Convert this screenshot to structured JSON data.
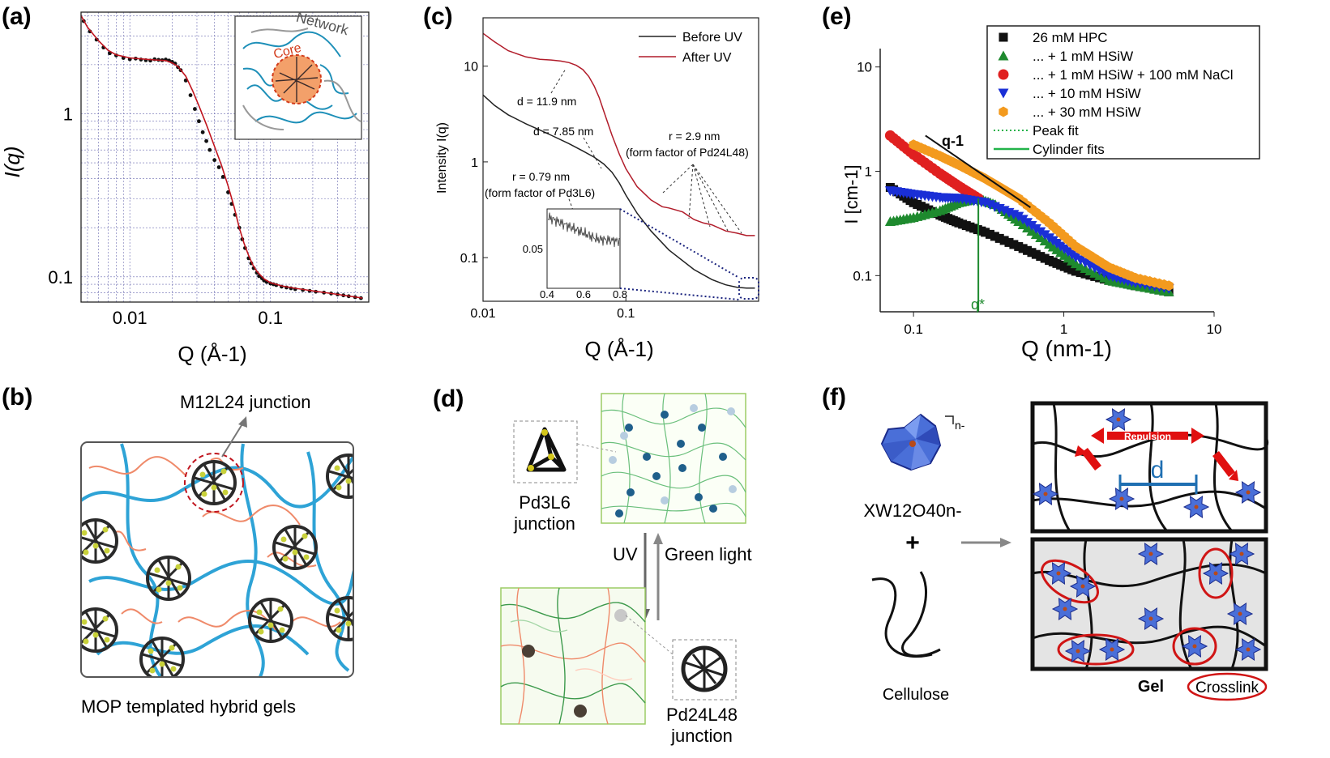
{
  "panels": {
    "a": {
      "letter": "(a)",
      "ylabel": "I(q)",
      "xlabel": "Q (Å-1)",
      "inset_labels": {
        "network": "Network",
        "core": "Core"
      }
    },
    "b": {
      "letter": "(b)",
      "junction_label": "M12L24 junction",
      "caption": "MOP templated hybrid gels"
    },
    "c": {
      "letter": "(c)",
      "legend": {
        "before": "Before UV",
        "after": "After UV"
      },
      "annotations": {
        "d_after": "d = 11.9 nm",
        "d_before": "d = 7.85 nm",
        "r_small": "r = 0.79 nm",
        "r_small_ff": "(form factor of Pd3L6)",
        "r_large": "r = 2.9 nm",
        "r_large_ff": "(form factor of Pd24L48)"
      }
    },
    "d": {
      "letter": "(d)",
      "pd3_label": "Pd3L6",
      "pd3_junction": "junction",
      "uv": "UV",
      "green": "Green light",
      "pd24_label": "Pd24L48",
      "pd24_junction": "junction"
    },
    "e": {
      "letter": "(e)",
      "legend": [
        {
          "label": "26 mM HPC",
          "color": "#111111",
          "marker": "square"
        },
        {
          "label": "... + 1 mM HSiW",
          "color": "#1e8a2e",
          "marker": "triangle-up"
        },
        {
          "label": "... + 1 mM HSiW + 100 mM NaCl",
          "color": "#e02020",
          "marker": "circle"
        },
        {
          "label": "... + 10 mM HSiW",
          "color": "#1a2fd6",
          "marker": "triangle-down"
        },
        {
          "label": "... + 30 mM HSiW",
          "color": "#f39a1e",
          "marker": "hexagon"
        },
        {
          "label": "Peak fit",
          "color": "#22b34a",
          "marker": "dotted-line"
        },
        {
          "label": "Cylinder fits",
          "color": "#22b34a",
          "marker": "solid-line"
        }
      ],
      "power_law": "q-1",
      "qstar": "q*"
    },
    "f": {
      "letter": "(f)",
      "charge": "n-",
      "formula": "XW12O40n-",
      "plus": "+",
      "cellulose": "Cellulose",
      "repulsion": "Repulsion",
      "d": "d",
      "gel": "Gel",
      "crosslink": "Crosslink"
    }
  },
  "chart_data": [
    {
      "panel": "a",
      "type": "scatter",
      "xscale": "log",
      "yscale": "log",
      "xlim": [
        0.0045,
        0.5
      ],
      "ylim": [
        0.07,
        4.2
      ],
      "xticks": [
        {
          "v": 0.01,
          "label": "0.01"
        },
        {
          "v": 0.1,
          "label": "0.1"
        }
      ],
      "yticks": [
        {
          "v": 0.1,
          "label": "0.1"
        },
        {
          "v": 1,
          "label": "1"
        }
      ],
      "grid": true,
      "series": [
        {
          "kind": "points",
          "color": "#111111",
          "x": [
            0.0047,
            0.0052,
            0.0058,
            0.0065,
            0.0072,
            0.008,
            0.009,
            0.01,
            0.011,
            0.012,
            0.013,
            0.014,
            0.015,
            0.016,
            0.017,
            0.018,
            0.019,
            0.02,
            0.021,
            0.022,
            0.023,
            0.025,
            0.027,
            0.029,
            0.031,
            0.033,
            0.035,
            0.037,
            0.04,
            0.043,
            0.046,
            0.05,
            0.053,
            0.056,
            0.06,
            0.063,
            0.066,
            0.07,
            0.073,
            0.076,
            0.08,
            0.083,
            0.087,
            0.09,
            0.094,
            0.1,
            0.105,
            0.11,
            0.12,
            0.13,
            0.14,
            0.15,
            0.17,
            0.19,
            0.21,
            0.24,
            0.27,
            0.3,
            0.33,
            0.36,
            0.4,
            0.44
          ],
          "y": [
            3.7,
            3.2,
            2.85,
            2.55,
            2.35,
            2.28,
            2.2,
            2.16,
            2.18,
            2.15,
            2.13,
            2.12,
            2.16,
            2.14,
            2.13,
            2.15,
            2.12,
            2.08,
            2.03,
            1.93,
            1.85,
            1.6,
            1.3,
            1.07,
            0.9,
            0.77,
            0.68,
            0.6,
            0.52,
            0.47,
            0.41,
            0.33,
            0.28,
            0.24,
            0.2,
            0.17,
            0.15,
            0.13,
            0.121,
            0.113,
            0.106,
            0.101,
            0.098,
            0.095,
            0.093,
            0.091,
            0.09,
            0.089,
            0.087,
            0.086,
            0.085,
            0.084,
            0.083,
            0.082,
            0.081,
            0.08,
            0.079,
            0.078,
            0.077,
            0.076,
            0.075,
            0.074
          ]
        },
        {
          "kind": "line",
          "color": "#c0141e",
          "x": [
            0.0045,
            0.005,
            0.006,
            0.007,
            0.008,
            0.01,
            0.012,
            0.015,
            0.018,
            0.02,
            0.022,
            0.025,
            0.028,
            0.031,
            0.035,
            0.04,
            0.045,
            0.05,
            0.055,
            0.06,
            0.065,
            0.07,
            0.075,
            0.08,
            0.09,
            0.1,
            0.12,
            0.15,
            0.2,
            0.3,
            0.45
          ],
          "y": [
            4.0,
            3.4,
            2.8,
            2.45,
            2.3,
            2.2,
            2.17,
            2.14,
            2.12,
            2.05,
            1.95,
            1.7,
            1.38,
            1.12,
            0.86,
            0.63,
            0.48,
            0.36,
            0.27,
            0.2,
            0.16,
            0.135,
            0.118,
            0.108,
            0.097,
            0.092,
            0.088,
            0.085,
            0.082,
            0.078,
            0.074
          ]
        }
      ]
    },
    {
      "panel": "c",
      "type": "line",
      "xscale": "log",
      "yscale": "log",
      "xlabel": "Q (Å-1)",
      "ylabel": "Intensity I(q)",
      "xlim": [
        0.01,
        0.85
      ],
      "ylim": [
        0.035,
        32
      ],
      "xticks": [
        {
          "v": 0.01,
          "label": "0.01"
        },
        {
          "v": 0.1,
          "label": "0.1"
        }
      ],
      "yticks": [
        {
          "v": 0.1,
          "label": "0.1"
        },
        {
          "v": 1,
          "label": "1"
        },
        {
          "v": 10,
          "label": "10"
        }
      ],
      "series": [
        {
          "name": "Before UV",
          "color": "#222222",
          "x": [
            0.01,
            0.012,
            0.015,
            0.02,
            0.025,
            0.03,
            0.04,
            0.05,
            0.06,
            0.07,
            0.08,
            0.09,
            0.1,
            0.12,
            0.15,
            0.2,
            0.3,
            0.4,
            0.5,
            0.6,
            0.7,
            0.8
          ],
          "y": [
            5.0,
            3.9,
            3.1,
            2.5,
            2.15,
            1.9,
            1.55,
            1.3,
            1.12,
            0.95,
            0.78,
            0.6,
            0.45,
            0.29,
            0.19,
            0.12,
            0.075,
            0.059,
            0.052,
            0.049,
            0.048,
            0.048
          ]
        },
        {
          "name": "After UV",
          "color": "#b11c2a",
          "x": [
            0.01,
            0.012,
            0.015,
            0.02,
            0.025,
            0.03,
            0.035,
            0.04,
            0.045,
            0.05,
            0.055,
            0.06,
            0.065,
            0.07,
            0.08,
            0.09,
            0.1,
            0.12,
            0.15,
            0.18,
            0.2,
            0.25,
            0.3,
            0.35,
            0.4,
            0.5,
            0.6,
            0.7,
            0.8
          ],
          "y": [
            22,
            18,
            14.5,
            12.5,
            11.8,
            11.6,
            11.3,
            10.9,
            10.2,
            9.2,
            7.8,
            6.2,
            4.7,
            3.4,
            1.9,
            1.2,
            0.85,
            0.55,
            0.4,
            0.34,
            0.33,
            0.3,
            0.25,
            0.23,
            0.22,
            0.19,
            0.18,
            0.17,
            0.17
          ]
        }
      ],
      "inset": {
        "xlim": [
          0.4,
          0.8
        ],
        "ylim": [
          0.03,
          0.075
        ],
        "xticks": [
          {
            "v": 0.4,
            "label": "0.4"
          },
          {
            "v": 0.6,
            "label": "0.6"
          },
          {
            "v": 0.8,
            "label": "0.8"
          }
        ],
        "yticks": [
          {
            "v": 0.05,
            "label": "0.05"
          }
        ]
      }
    },
    {
      "panel": "e",
      "type": "scatter",
      "xscale": "log",
      "yscale": "log",
      "xlabel": "Q (nm-1)",
      "ylabel": "I [cm-1]",
      "xlim": [
        0.06,
        10
      ],
      "ylim": [
        0.045,
        15
      ],
      "xticks": [
        {
          "v": 0.1,
          "label": "0.1"
        },
        {
          "v": 1,
          "label": "1"
        },
        {
          "v": 10,
          "label": "10"
        }
      ],
      "yticks": [
        {
          "v": 0.1,
          "label": "0.1"
        },
        {
          "v": 1,
          "label": "1"
        },
        {
          "v": 10,
          "label": "10"
        }
      ],
      "series": [
        {
          "name": "26 mM HPC",
          "x": [
            0.07,
            0.1,
            0.15,
            0.2,
            0.3,
            0.5,
            0.8,
            1.2,
            2,
            3,
            5
          ],
          "y": [
            0.7,
            0.5,
            0.38,
            0.32,
            0.26,
            0.19,
            0.14,
            0.11,
            0.09,
            0.08,
            0.07
          ]
        },
        {
          "name": "... + 1 mM HSiW",
          "x": [
            0.07,
            0.1,
            0.15,
            0.2,
            0.27,
            0.35,
            0.5,
            0.8,
            1.2,
            2,
            3,
            5
          ],
          "y": [
            0.33,
            0.36,
            0.42,
            0.5,
            0.55,
            0.48,
            0.33,
            0.2,
            0.13,
            0.09,
            0.08,
            0.07
          ]
        },
        {
          "name": "... + 1 mM HSiW + 100 mM NaCl",
          "x": [
            0.07,
            0.1,
            0.15,
            0.2,
            0.27
          ],
          "y": [
            2.2,
            1.45,
            0.95,
            0.72,
            0.55
          ]
        },
        {
          "name": "... + 10 mM HSiW",
          "x": [
            0.07,
            0.1,
            0.15,
            0.2,
            0.3,
            0.5,
            0.8,
            1.2,
            2,
            3,
            5
          ],
          "y": [
            0.65,
            0.6,
            0.56,
            0.55,
            0.5,
            0.37,
            0.23,
            0.15,
            0.1,
            0.085,
            0.075
          ]
        },
        {
          "name": "... + 30 mM HSiW",
          "x": [
            0.1,
            0.15,
            0.2,
            0.3,
            0.5,
            0.8,
            1.2,
            2,
            3,
            5
          ],
          "y": [
            1.8,
            1.4,
            1.15,
            0.85,
            0.55,
            0.32,
            0.19,
            0.12,
            0.095,
            0.08
          ]
        }
      ],
      "qstar_x": 0.27
    }
  ]
}
